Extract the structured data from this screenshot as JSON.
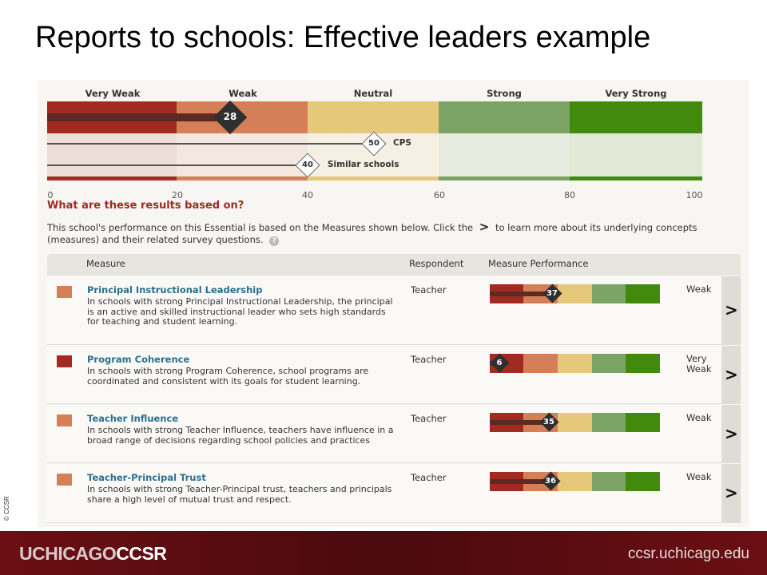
{
  "slide": {
    "title": "Reports to schools: Effective leaders example"
  },
  "scale": {
    "categories": [
      "Very Weak",
      "Weak",
      "Neutral",
      "Strong",
      "Very Strong"
    ],
    "colors": [
      "#a12a21",
      "#d57f59",
      "#e6c87a",
      "#7aa364",
      "#428a0e"
    ],
    "ticks": [
      "0",
      "20",
      "40",
      "60",
      "80",
      "100"
    ],
    "school_score": "28",
    "references": [
      {
        "value": "50",
        "label": "CPS"
      },
      {
        "value": "40",
        "label": "Similar schools"
      }
    ]
  },
  "section": {
    "question": "What are these results based on?",
    "intro_part1": "This school's performance on this Essential is based on the Measures shown below. Click the",
    "intro_arrow": ">",
    "intro_part2": "to learn more about its underlying concepts (measures) and their related survey questions.",
    "help_icon": "?"
  },
  "table": {
    "headers": {
      "measure": "Measure",
      "respondent": "Respondent",
      "performance": "Measure Performance"
    },
    "rows": [
      {
        "title": "Principal Instructional Leadership",
        "description": "In schools with strong Principal Instructional Leadership, the principal is an active and skilled instructional leader who sets high standards for teaching and student learning.",
        "respondent": "Teacher",
        "score": "37",
        "rating": "Weak",
        "swatch": "#d57f59",
        "chevron": ">"
      },
      {
        "title": "Program Coherence",
        "description": "In schools with strong Program Coherence, school programs are coordinated and consistent with its goals for student learning.",
        "respondent": "Teacher",
        "score": "6",
        "rating": "Very Weak",
        "swatch": "#a12a21",
        "chevron": ">"
      },
      {
        "title": "Teacher Influence",
        "description": "In schools with strong Teacher Influence, teachers have influence in a broad range of decisions regarding school policies and practices",
        "respondent": "Teacher",
        "score": "35",
        "rating": "Weak",
        "swatch": "#d57f59",
        "chevron": ">"
      },
      {
        "title": "Teacher-Principal Trust",
        "description": "In schools with strong Teacher-Principal trust, teachers and principals share a high level of mutual trust and respect.",
        "respondent": "Teacher",
        "score": "36",
        "rating": "Weak",
        "swatch": "#d57f59",
        "chevron": ">"
      }
    ]
  },
  "footer": {
    "logo_part1": "UCHICAGO",
    "logo_part2": "CCSR",
    "url": "ccsr.uchicago.edu",
    "copyright": "© CCSR"
  }
}
